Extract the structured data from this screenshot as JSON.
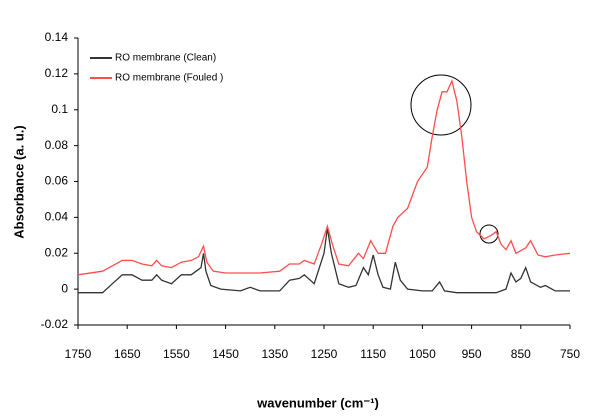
{
  "chart_data": {
    "type": "line",
    "xlabel": "wavenumber (cm⁻¹)",
    "ylabel": "Absorbance (a. u.)",
    "xlim": [
      1750,
      750
    ],
    "xticks": [
      1750,
      1650,
      1550,
      1450,
      1350,
      1250,
      1150,
      1050,
      950,
      850,
      750
    ],
    "ylim": [
      -0.02,
      0.14
    ],
    "yticks": [
      -0.02,
      0,
      0.02,
      0.04,
      0.06,
      0.08,
      0.1,
      0.12,
      0.14
    ],
    "grid": false,
    "legend": "upper left",
    "series": [
      {
        "name": "RO membrane (Clean)",
        "color": "#333333",
        "x": [
          1750,
          1700,
          1680,
          1660,
          1640,
          1620,
          1600,
          1590,
          1580,
          1560,
          1540,
          1520,
          1510,
          1500,
          1495,
          1490,
          1480,
          1460,
          1420,
          1400,
          1380,
          1340,
          1320,
          1300,
          1290,
          1270,
          1250,
          1243,
          1235,
          1220,
          1200,
          1185,
          1170,
          1160,
          1150,
          1140,
          1130,
          1115,
          1105,
          1095,
          1080,
          1050,
          1030,
          1015,
          1005,
          980,
          950,
          900,
          880,
          870,
          860,
          850,
          840,
          830,
          810,
          800,
          780,
          750
        ],
        "values": [
          -0.002,
          -0.002,
          0.003,
          0.008,
          0.008,
          0.005,
          0.005,
          0.008,
          0.005,
          0.003,
          0.008,
          0.008,
          0.01,
          0.012,
          0.02,
          0.01,
          0.002,
          0,
          -0.001,
          0.001,
          -0.001,
          -0.001,
          0.005,
          0.006,
          0.008,
          0.003,
          0.02,
          0.034,
          0.02,
          0.003,
          0.001,
          0.002,
          0.012,
          0.008,
          0.019,
          0.008,
          0.001,
          0,
          0.015,
          0.005,
          0,
          -0.001,
          -0.001,
          0.004,
          -0.001,
          -0.002,
          -0.002,
          -0.002,
          0,
          0.009,
          0.004,
          0.006,
          0.012,
          0.004,
          0.001,
          0.002,
          -0.001,
          -0.001
        ]
      },
      {
        "name": "RO membrane (Fouled )",
        "color": "#ff4d4d",
        "x": [
          1750,
          1700,
          1680,
          1660,
          1640,
          1620,
          1600,
          1590,
          1580,
          1560,
          1540,
          1520,
          1505,
          1495,
          1488,
          1475,
          1450,
          1420,
          1400,
          1380,
          1340,
          1320,
          1300,
          1290,
          1270,
          1255,
          1243,
          1233,
          1220,
          1200,
          1180,
          1170,
          1155,
          1140,
          1125,
          1110,
          1100,
          1080,
          1060,
          1040,
          1030,
          1020,
          1010,
          1000,
          990,
          980,
          970,
          960,
          950,
          940,
          925,
          910,
          900,
          890,
          880,
          870,
          860,
          840,
          830,
          815,
          800,
          780,
          750
        ],
        "values": [
          0.008,
          0.01,
          0.013,
          0.016,
          0.016,
          0.014,
          0.013,
          0.016,
          0.013,
          0.012,
          0.015,
          0.016,
          0.018,
          0.024,
          0.015,
          0.01,
          0.009,
          0.009,
          0.009,
          0.009,
          0.01,
          0.014,
          0.014,
          0.016,
          0.014,
          0.025,
          0.035,
          0.025,
          0.014,
          0.013,
          0.02,
          0.017,
          0.027,
          0.02,
          0.02,
          0.035,
          0.04,
          0.045,
          0.06,
          0.068,
          0.085,
          0.1,
          0.11,
          0.11,
          0.116,
          0.105,
          0.085,
          0.06,
          0.04,
          0.032,
          0.028,
          0.03,
          0.032,
          0.025,
          0.022,
          0.027,
          0.02,
          0.023,
          0.027,
          0.019,
          0.018,
          0.019,
          0.02
        ]
      }
    ]
  }
}
